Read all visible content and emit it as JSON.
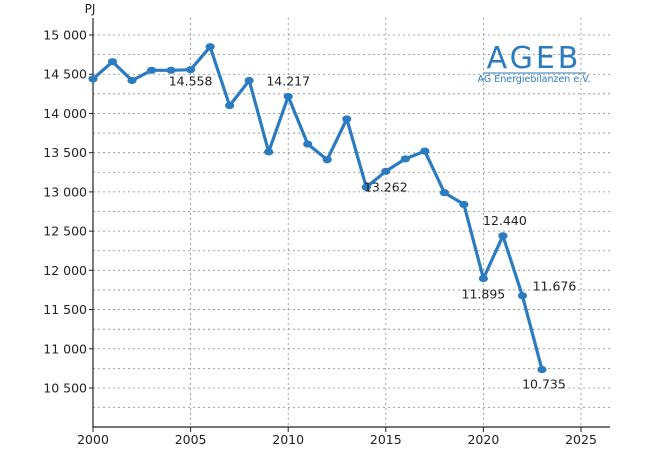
{
  "chart_data": {
    "type": "line",
    "ylabel": "PJ",
    "ylim": [
      10000,
      15200
    ],
    "xlim": [
      2000,
      2025
    ],
    "y_ticks": [
      {
        "value": 10500,
        "label": "10 500"
      },
      {
        "value": 11000,
        "label": "11 000"
      },
      {
        "value": 11500,
        "label": "11 500"
      },
      {
        "value": 12000,
        "label": "12 000"
      },
      {
        "value": 12500,
        "label": "12 500"
      },
      {
        "value": 13000,
        "label": "13 000"
      },
      {
        "value": 13500,
        "label": "13 500"
      },
      {
        "value": 14000,
        "label": "14 000"
      },
      {
        "value": 14500,
        "label": "14 500"
      },
      {
        "value": 15000,
        "label": "15 000"
      }
    ],
    "x_ticks": [
      {
        "value": 2000,
        "label": "2000"
      },
      {
        "value": 2005,
        "label": "2005"
      },
      {
        "value": 2010,
        "label": "2010"
      },
      {
        "value": 2015,
        "label": "2015"
      },
      {
        "value": 2020,
        "label": "2020"
      },
      {
        "value": 2025,
        "label": "2025"
      }
    ],
    "grid": {
      "horizontal": "dotted",
      "vertical": "dotted"
    },
    "color": "#2b7bc0",
    "series": [
      {
        "x": [
          2000,
          2001,
          2002,
          2003,
          2004,
          2005,
          2006,
          2007,
          2008,
          2009,
          2010,
          2011,
          2012,
          2013,
          2014,
          2015,
          2016,
          2017,
          2018,
          2019,
          2020,
          2021,
          2022,
          2023
        ],
        "values": [
          14440,
          14660,
          14420,
          14550,
          14550,
          14558,
          14850,
          14100,
          14420,
          13510,
          14217,
          13610,
          13410,
          13930,
          13060,
          13262,
          13420,
          13520,
          12990,
          12840,
          11895,
          12440,
          11676,
          10735
        ]
      }
    ],
    "annotations": [
      {
        "x": 2005,
        "value": 14558,
        "label": "14.558"
      },
      {
        "x": 2010,
        "value": 14217,
        "label": "14.217"
      },
      {
        "x": 2015,
        "value": 13262,
        "label": "13.262"
      },
      {
        "x": 2020,
        "value": 11895,
        "label": "11.895"
      },
      {
        "x": 2021,
        "value": 12440,
        "label": "12.440"
      },
      {
        "x": 2022,
        "value": 11676,
        "label": "11.676"
      },
      {
        "x": 2023,
        "value": 10735,
        "label": "10.735"
      }
    ]
  },
  "logo": {
    "name": "AGEB",
    "subtitle": "AG Energiebilanzen e.V."
  }
}
